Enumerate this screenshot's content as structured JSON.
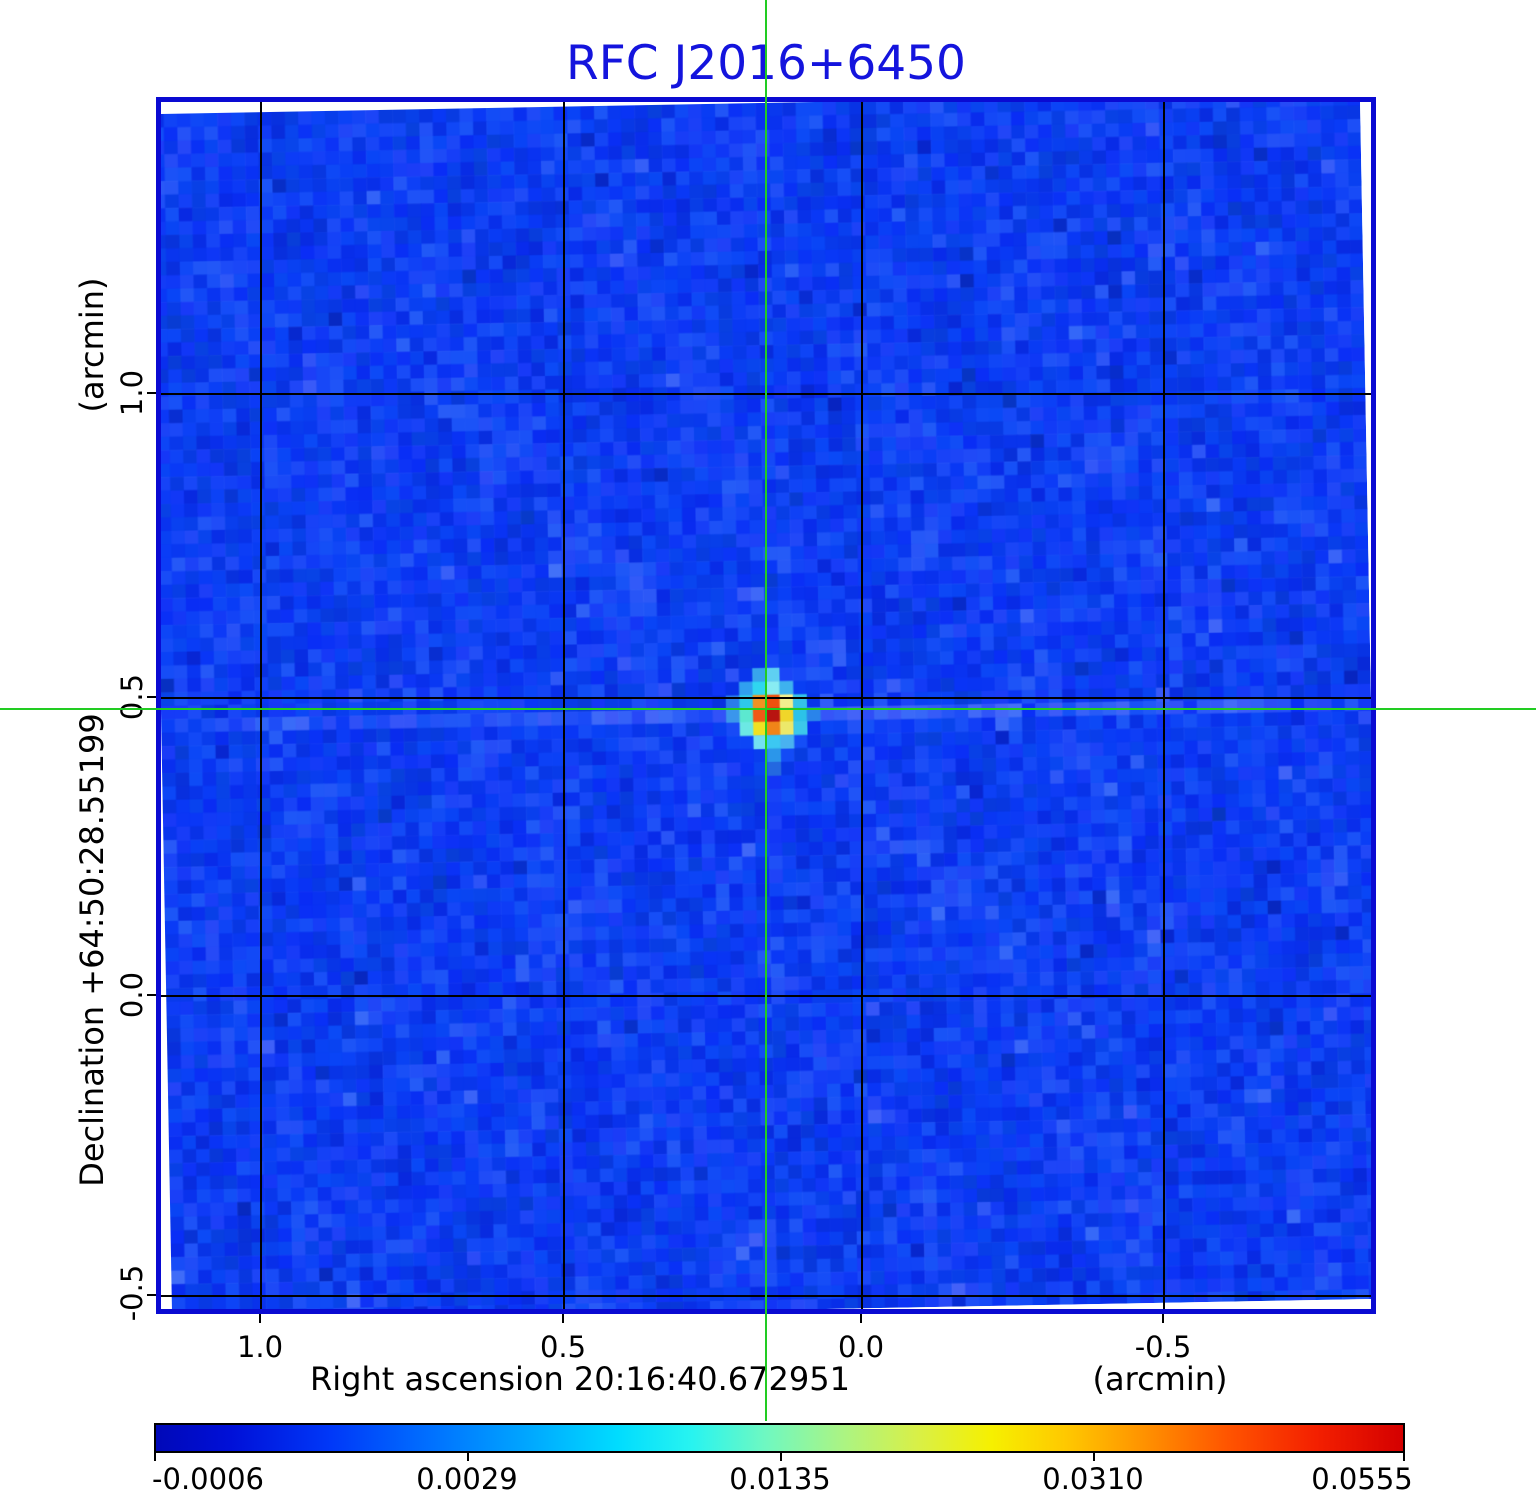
{
  "title": {
    "text": "RFC J2016+6450",
    "color": "#1414dd"
  },
  "axes": {
    "x": {
      "label": "Right ascension  20:16:40.672951",
      "unit": "(arcmin)",
      "ticks": [
        "1.0",
        "0.5",
        "0.0",
        "-0.5"
      ]
    },
    "y": {
      "label": "Declination  +64:50:28.55199",
      "unit": "(arcmin)",
      "ticks": [
        "1.0",
        "0.5",
        "0.0",
        "-0.5"
      ]
    }
  },
  "colorbar": {
    "tick_labels": [
      "-0.0006",
      "0.0029",
      "0.0135",
      "0.0310",
      "0.0555"
    ],
    "gradient": [
      [
        0,
        "#0008b8"
      ],
      [
        6,
        "#0010d8"
      ],
      [
        14,
        "#0038f8"
      ],
      [
        22,
        "#0070ff"
      ],
      [
        30,
        "#00a8ff"
      ],
      [
        37,
        "#00dcff"
      ],
      [
        43,
        "#28f4f0"
      ],
      [
        49,
        "#70f8c0"
      ],
      [
        55,
        "#aaf484"
      ],
      [
        61,
        "#d8f048"
      ],
      [
        67,
        "#f6f000"
      ],
      [
        73,
        "#ffc800"
      ],
      [
        79,
        "#ff9400"
      ],
      [
        86,
        "#ff5400"
      ],
      [
        93,
        "#f42000"
      ],
      [
        100,
        "#d40000"
      ]
    ]
  },
  "crosshair": {
    "color": "#22cc22"
  },
  "frame_color": "#0a0ad2",
  "grid_color": "#000000",
  "chart_data": {
    "type": "heatmap",
    "title": "RFC J2016+6450",
    "xlabel": "Right ascension 20:16:40.672951 (arcmin)",
    "ylabel": "Declination +64:50:28.55199 (arcmin)",
    "x_ticks": [
      1.0,
      0.5,
      0.0,
      -0.5
    ],
    "y_ticks": [
      1.0,
      0.5,
      0.0,
      -0.5
    ],
    "xlim": [
      1.17,
      -0.86
    ],
    "ylim": [
      -0.53,
      1.49
    ],
    "value_range": [
      -0.0006,
      0.0555
    ],
    "colorbar_ticks": [
      -0.0006,
      0.0029,
      0.0135,
      0.031,
      0.0555
    ],
    "colormap": "rainbow (dark blue > blue > cyan > green > yellow > orange > red)",
    "grid": true,
    "background_noise_level": 0.001,
    "source": {
      "name": "RFC J2016+6450",
      "ra": "20:16:40.672951",
      "dec": "+64:50:28.55199",
      "position_arcmin": [
        0.16,
        0.48
      ],
      "peak_value": 0.0555,
      "marked_by": "green crosshair lines"
    }
  },
  "render": {
    "cell": 13.45,
    "center_col": 45,
    "center_row": 45,
    "source_blob": [
      [
        -1,
        -3,
        "#38a4ec"
      ],
      [
        0,
        -3,
        "#5fd0f2"
      ],
      [
        -2,
        -2,
        "#309ff0"
      ],
      [
        -1,
        -2,
        "#2fd6f0"
      ],
      [
        0,
        -2,
        "#88ecf2"
      ],
      [
        1,
        -2,
        "#3eb2ee"
      ],
      [
        -3,
        -1,
        "#2a7ce8"
      ],
      [
        -2,
        -1,
        "#2ec8ea"
      ],
      [
        -1,
        -1,
        "#f09222"
      ],
      [
        0,
        -1,
        "#f0500e"
      ],
      [
        1,
        -1,
        "#f2ee8e"
      ],
      [
        2,
        -1,
        "#35c2e8"
      ],
      [
        -3,
        0,
        "#3a96ec"
      ],
      [
        -2,
        0,
        "#5ce8d0"
      ],
      [
        -1,
        0,
        "#f05a16"
      ],
      [
        0,
        0,
        "#b81410"
      ],
      [
        1,
        0,
        "#f0d62a"
      ],
      [
        2,
        0,
        "#2cc2e8"
      ],
      [
        3,
        0,
        "#2a84ea"
      ],
      [
        -2,
        1,
        "#6ce8e4"
      ],
      [
        -1,
        1,
        "#f0e122"
      ],
      [
        0,
        1,
        "#f08418"
      ],
      [
        1,
        1,
        "#ece86a"
      ],
      [
        2,
        1,
        "#3cc8ea"
      ],
      [
        -1,
        2,
        "#72e0f2"
      ],
      [
        0,
        2,
        "#3cc8f2"
      ],
      [
        1,
        2,
        "#49b2f0"
      ],
      [
        0,
        3,
        "#2b96ea"
      ],
      [
        0,
        4,
        "#2468e0"
      ]
    ]
  }
}
